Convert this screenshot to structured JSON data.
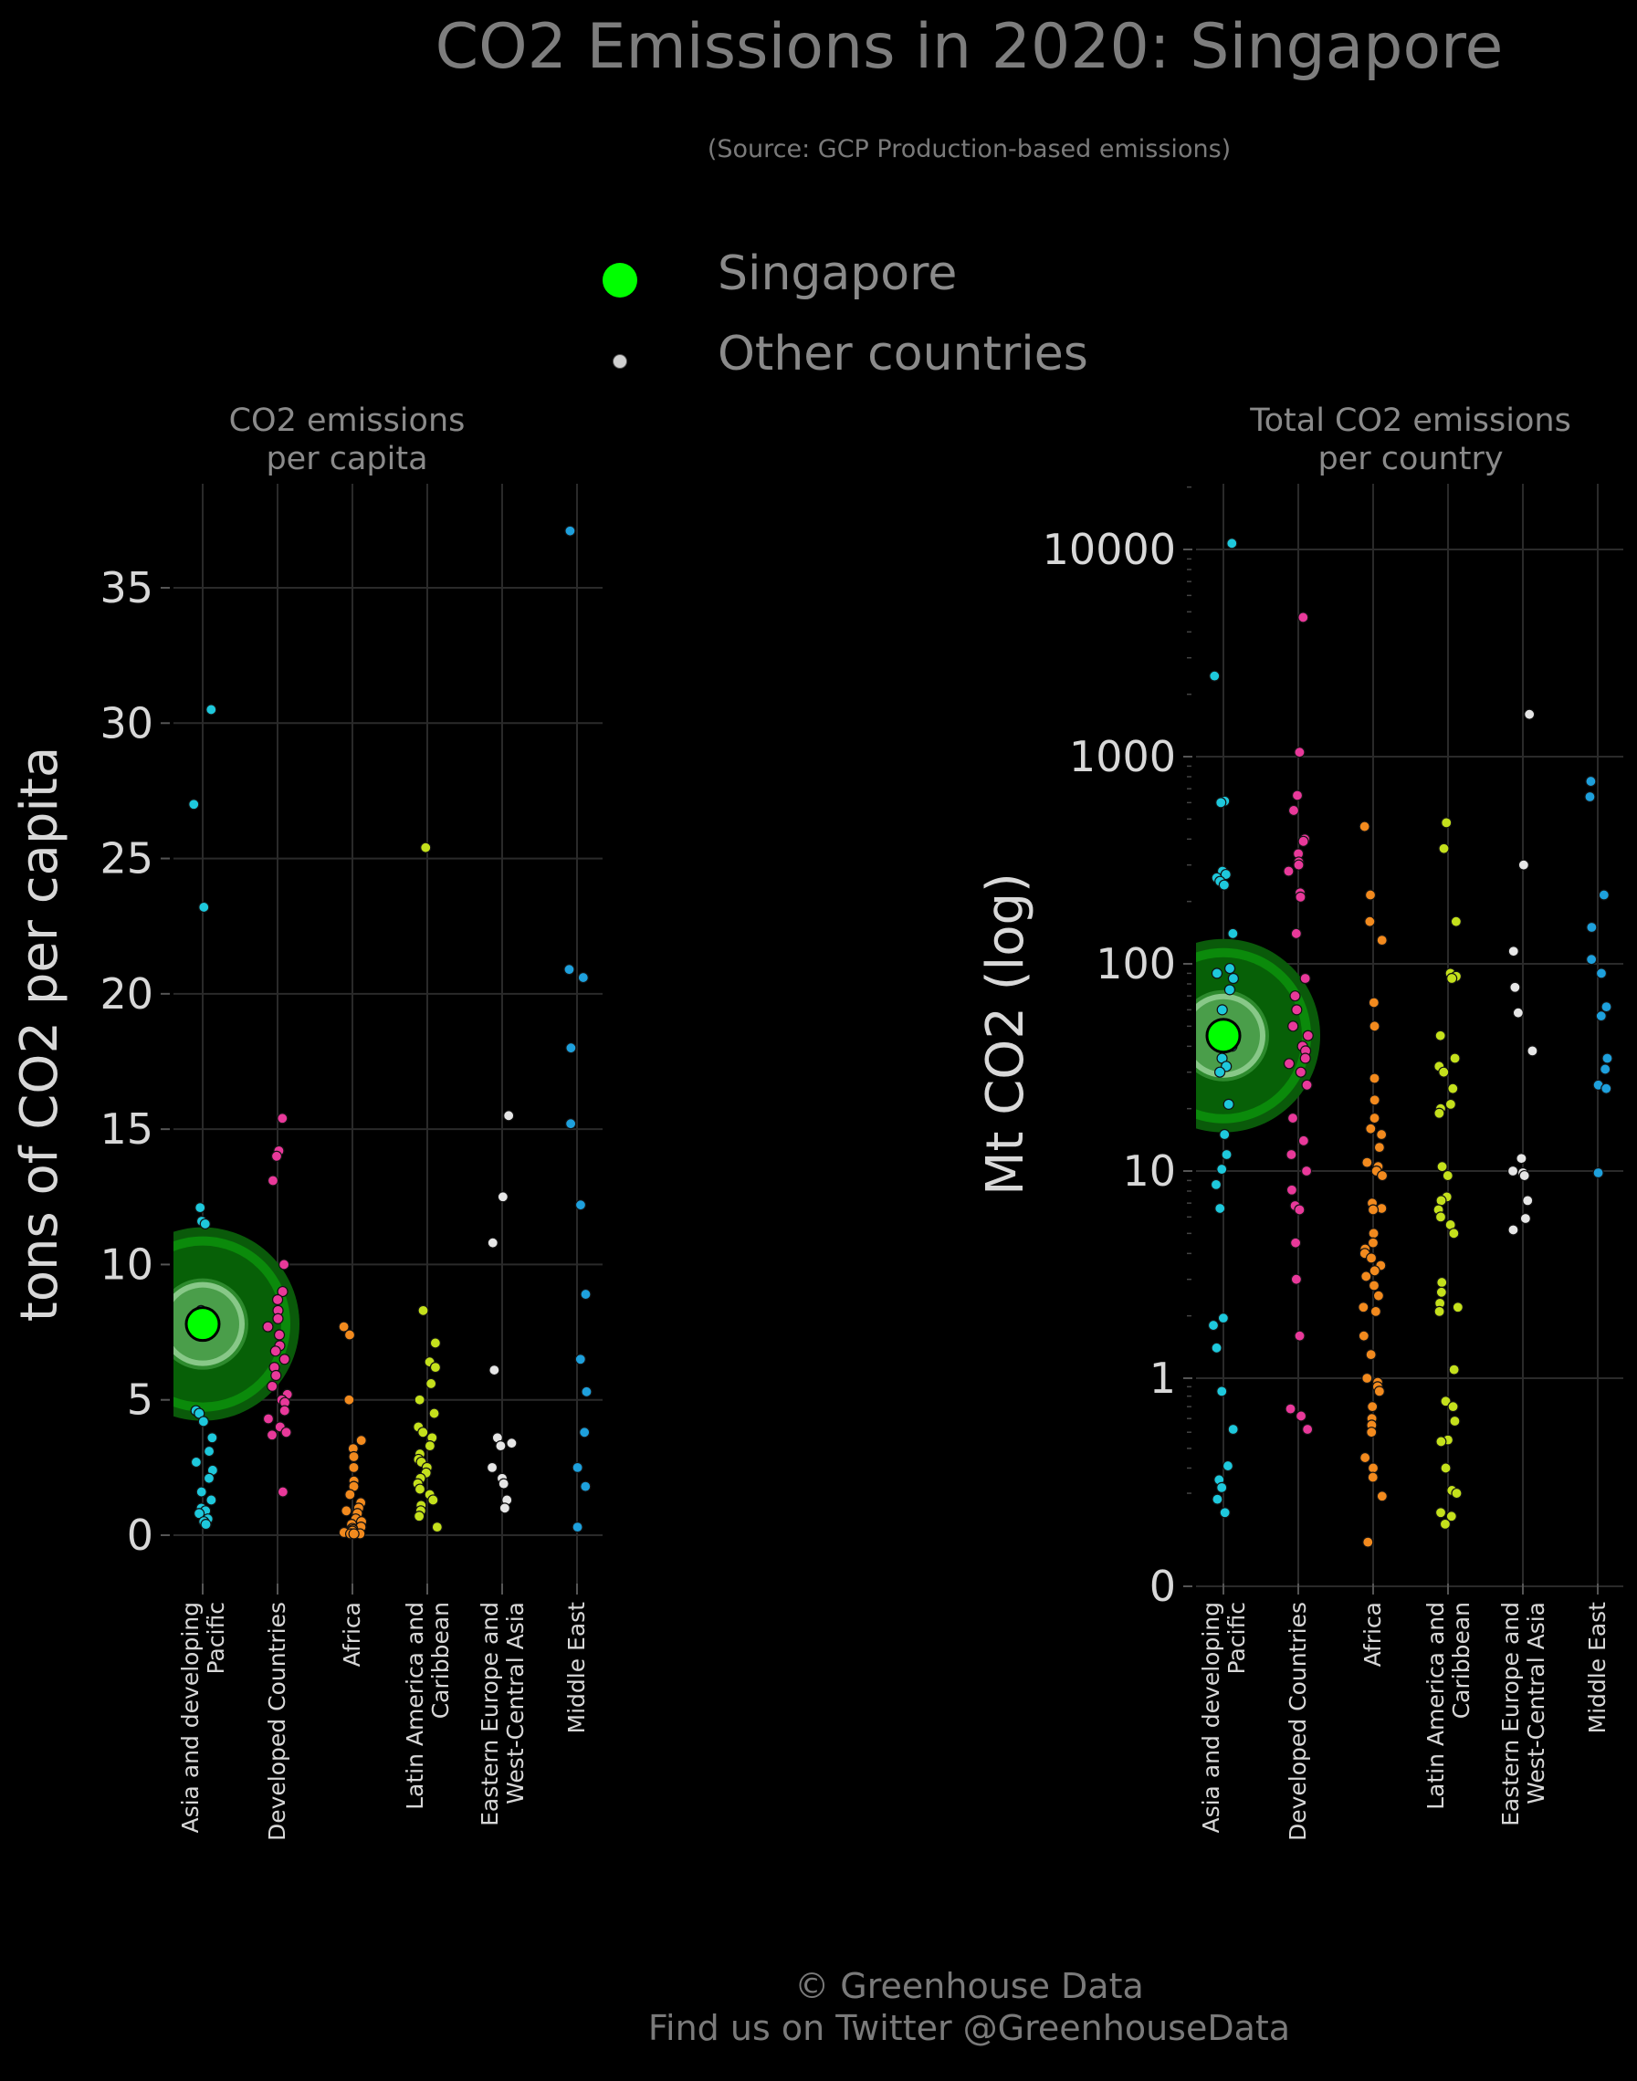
{
  "title": "CO2 Emissions in 2020: Singapore",
  "subtitle": "(Source: GCP Production-based emissions)",
  "legend": {
    "highlight_label": "Singapore",
    "other_label": "Other countries",
    "highlight_color": "#00ff00",
    "other_color": "#d9d9d9"
  },
  "footer": {
    "line1": "© Greenhouse Data",
    "line2": "Find us on Twitter @GreenhouseData"
  },
  "region_colors": [
    "#1ec8dc",
    "#e8399a",
    "#f28a1e",
    "#c4e01c",
    "#e6e6e6",
    "#1ea0dc"
  ],
  "chart_data": [
    {
      "type": "scatter",
      "title": "CO2 emissions\nper capita",
      "ylabel": "tons of CO2 per capita",
      "ylim": [
        0,
        38
      ],
      "yscale": "linear",
      "yticks": [
        "0",
        "5",
        "10",
        "15",
        "20",
        "25",
        "30",
        "35"
      ],
      "categories": [
        "Asia and developing\nPacific",
        "Developed Countries",
        "Africa",
        "Latin America and\nCaribbean",
        "Eastern Europe and\nWest-Central Asia",
        "Middle East"
      ],
      "highlight": {
        "name": "Singapore",
        "category_index": 0,
        "value": 7.8
      },
      "series": [
        {
          "name": "Asia and developing Pacific",
          "values": [
            30.5,
            27.0,
            23.2,
            12.1,
            11.6,
            11.5,
            4.6,
            4.5,
            4.2,
            3.6,
            3.1,
            2.7,
            2.4,
            2.1,
            1.6,
            1.3,
            1.0,
            0.9,
            0.8,
            0.6,
            0.5,
            0.4,
            8.3,
            7.9
          ]
        },
        {
          "name": "Developed Countries",
          "values": [
            15.4,
            14.2,
            14.0,
            13.1,
            10.0,
            9.0,
            8.7,
            8.3,
            8.0,
            7.7,
            7.4,
            7.0,
            6.8,
            6.5,
            6.2,
            5.9,
            5.5,
            5.2,
            5.0,
            4.9,
            4.6,
            4.3,
            4.0,
            3.8,
            3.7,
            1.6
          ]
        },
        {
          "name": "Africa",
          "values": [
            7.7,
            7.4,
            5.0,
            3.5,
            3.2,
            2.9,
            2.5,
            2.0,
            1.8,
            1.5,
            1.2,
            1.0,
            0.9,
            0.8,
            0.6,
            0.5,
            0.4,
            0.3,
            0.25,
            0.2,
            0.15,
            0.1,
            0.1,
            0.05,
            0.05,
            0.05
          ]
        },
        {
          "name": "Latin America and Caribbean",
          "values": [
            25.4,
            8.3,
            7.1,
            6.4,
            6.2,
            5.6,
            5.0,
            4.5,
            4.0,
            3.8,
            3.6,
            3.3,
            3.0,
            2.8,
            2.7,
            2.5,
            2.3,
            2.1,
            1.9,
            1.7,
            1.5,
            1.3,
            1.1,
            0.9,
            0.7,
            0.3
          ]
        },
        {
          "name": "Eastern Europe and West-Central Asia",
          "values": [
            15.5,
            12.5,
            10.8,
            6.1,
            3.6,
            3.4,
            3.3,
            2.5,
            2.1,
            1.9,
            1.3,
            1.0
          ]
        },
        {
          "name": "Middle East",
          "values": [
            37.1,
            20.9,
            20.6,
            18.0,
            15.2,
            12.2,
            8.9,
            6.5,
            5.3,
            3.8,
            2.5,
            1.8,
            0.3
          ]
        }
      ]
    },
    {
      "type": "scatter",
      "title": "Total CO2 emissions\nper country",
      "ylabel": "Mt CO2 (log)",
      "ylim": [
        0,
        20000
      ],
      "yscale": "log",
      "yticks": [
        "0",
        "1",
        "10",
        "100",
        "1000",
        "10000"
      ],
      "categories": [
        "Asia and developing\nPacific",
        "Developed Countries",
        "Africa",
        "Latin America and\nCaribbean",
        "Eastern Europe and\nWest-Central Asia",
        "Middle East"
      ],
      "highlight": {
        "name": "Singapore",
        "category_index": 0,
        "value": 45
      },
      "series": [
        {
          "name": "Asia and developing Pacific",
          "values": [
            10700,
            2450,
            610,
            600,
            280,
            270,
            260,
            250,
            240,
            140,
            95,
            90,
            85,
            75,
            60,
            40,
            35,
            32,
            30,
            21,
            15,
            12,
            10.2,
            8.6,
            6.6,
            1.95,
            1.8,
            1.4,
            0.85,
            0.52,
            0.31,
            0.25,
            0.22,
            0.18,
            0.14
          ]
        },
        {
          "name": "Developed Countries",
          "values": [
            4700,
            1050,
            650,
            550,
            400,
            390,
            340,
            310,
            300,
            280,
            220,
            210,
            140,
            85,
            70,
            60,
            50,
            45,
            40,
            38,
            35,
            33,
            30,
            26,
            18,
            14,
            12,
            10,
            8.1,
            6.8,
            6.5,
            4.5,
            3.0,
            1.6,
            0.68,
            0.62,
            0.52
          ]
        },
        {
          "name": "Africa",
          "values": [
            460,
            215,
            160,
            130,
            65,
            50,
            28,
            22,
            18,
            16,
            15,
            13,
            11,
            10.5,
            10,
            9.5,
            7,
            6.6,
            6.5,
            5,
            4.5,
            4.2,
            4,
            3.8,
            3.5,
            3.3,
            3.1,
            2.8,
            2.5,
            2.2,
            2.1,
            1.6,
            1.3,
            1.0,
            0.95,
            0.9,
            0.85,
            0.7,
            0.6,
            0.55,
            0.5,
            0.35,
            0.3,
            0.26,
            0.19,
            0.07
          ]
        },
        {
          "name": "Latin America and Caribbean",
          "values": [
            480,
            360,
            160,
            90,
            87,
            85,
            45,
            35,
            32,
            30,
            25,
            21,
            20,
            19,
            10.5,
            9.5,
            7.5,
            7.2,
            6.5,
            6,
            5.5,
            5,
            2.9,
            2.6,
            2.3,
            2.2,
            2.1,
            1.1,
            0.75,
            0.7,
            0.58,
            0.45,
            0.44,
            0.3,
            0.21,
            0.2,
            0.14,
            0.13,
            0.11
          ]
        },
        {
          "name": "Eastern Europe and West-Central Asia",
          "values": [
            1600,
            300,
            115,
            77,
            58,
            38,
            11.5,
            10,
            9.8,
            9.5,
            7.2,
            5.9,
            5.2
          ]
        },
        {
          "name": "Middle East",
          "values": [
            760,
            640,
            215,
            150,
            105,
            90,
            62,
            56,
            35,
            31,
            26,
            25,
            9.8
          ]
        }
      ]
    }
  ]
}
